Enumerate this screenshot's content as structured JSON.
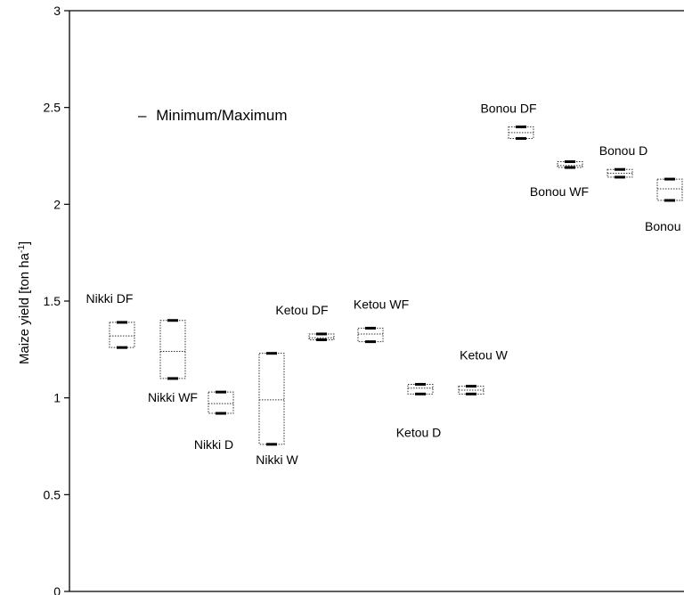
{
  "chart_data": {
    "type": "box",
    "title": "",
    "ylabel": "Maize yield [ton ha",
    "ylabel_sup": "-1",
    "ylabel_close": "]",
    "ylim": [
      0,
      3
    ],
    "yticks": [
      0,
      0.5,
      1,
      1.5,
      2,
      2.5,
      3
    ],
    "ytick_labels": [
      "0",
      "0.5",
      "1",
      "1.5",
      "2",
      "2.5",
      "3"
    ],
    "grid": false,
    "legend": {
      "text": "Minimum/Maximum",
      "marker": "–",
      "placement": "top-left"
    },
    "series": [
      {
        "label": "Nikki DF",
        "min": 1.26,
        "q1": 1.26,
        "median": 1.32,
        "q3": 1.39,
        "max": 1.39
      },
      {
        "label": "Nikki WF",
        "min": 1.1,
        "q1": 1.1,
        "median": 1.24,
        "q3": 1.4,
        "max": 1.4
      },
      {
        "label": "Nikki D",
        "min": 0.92,
        "q1": 0.92,
        "median": 0.97,
        "q3": 1.03,
        "max": 1.03
      },
      {
        "label": "Nikki W",
        "min": 0.76,
        "q1": 0.76,
        "median": 0.99,
        "q3": 1.23,
        "max": 1.23
      },
      {
        "label": "Ketou DF",
        "min": 1.3,
        "q1": 1.3,
        "median": 1.31,
        "q3": 1.33,
        "max": 1.33
      },
      {
        "label": "Ketou WF",
        "min": 1.29,
        "q1": 1.29,
        "median": 1.33,
        "q3": 1.36,
        "max": 1.36
      },
      {
        "label": "Ketou D",
        "min": 1.02,
        "q1": 1.02,
        "median": 1.05,
        "q3": 1.07,
        "max": 1.07
      },
      {
        "label": "Ketou W",
        "min": 1.02,
        "q1": 1.02,
        "median": 1.04,
        "q3": 1.06,
        "max": 1.06
      },
      {
        "label": "Bonou DF",
        "min": 2.34,
        "q1": 2.34,
        "median": 2.37,
        "q3": 2.4,
        "max": 2.4
      },
      {
        "label": "Bonou WF",
        "min": 2.19,
        "q1": 2.19,
        "median": 2.2,
        "q3": 2.22,
        "max": 2.22
      },
      {
        "label": "Bonou D",
        "min": 2.14,
        "q1": 2.14,
        "median": 2.16,
        "q3": 2.18,
        "max": 2.18
      },
      {
        "label": "Bonou W",
        "min": 2.02,
        "q1": 2.02,
        "median": 2.08,
        "q3": 2.13,
        "max": 2.13
      }
    ]
  }
}
